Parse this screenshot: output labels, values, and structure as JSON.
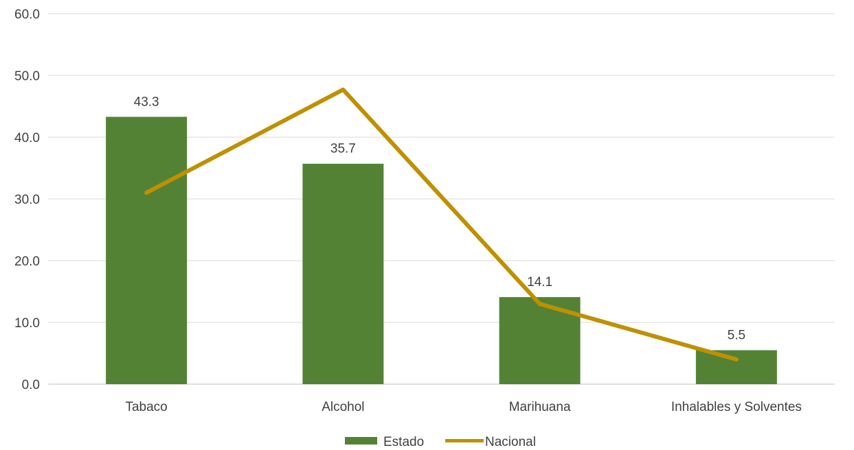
{
  "chart_data": {
    "type": "bar",
    "categories": [
      "Tabaco",
      "Alcohol",
      "Marihuana",
      "Inhalables y Solventes"
    ],
    "series": [
      {
        "name": "Estado",
        "kind": "bar",
        "values": [
          43.3,
          35.7,
          14.1,
          5.5
        ],
        "color": "#548235"
      },
      {
        "name": "Nacional",
        "kind": "line",
        "values": [
          31.0,
          47.7,
          13.0,
          4.0
        ],
        "color": "#BF9000"
      }
    ],
    "data_labels": [
      "43.3",
      "35.7",
      "14.1",
      "5.5"
    ],
    "yticks": [
      "0.0",
      "10.0",
      "20.0",
      "30.0",
      "40.0",
      "50.0",
      "60.0"
    ],
    "ylim": [
      0,
      60
    ],
    "grid": true,
    "legend_position": "bottom"
  }
}
